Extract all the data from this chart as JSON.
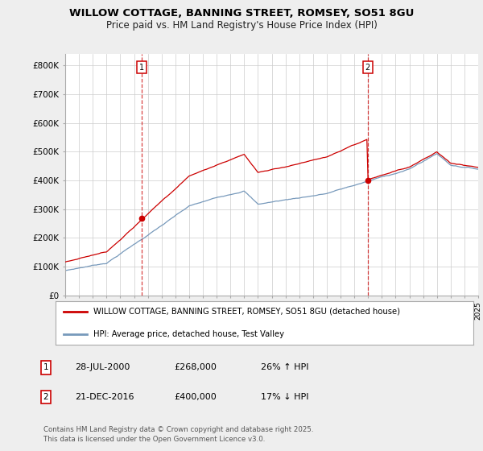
{
  "title_line1": "WILLOW COTTAGE, BANNING STREET, ROMSEY, SO51 8GU",
  "title_line2": "Price paid vs. HM Land Registry's House Price Index (HPI)",
  "background_color": "#eeeeee",
  "plot_bg_color": "#ffffff",
  "red_color": "#cc0000",
  "blue_color": "#7799bb",
  "y_min": 0,
  "y_max": 840000,
  "y_ticks": [
    0,
    100000,
    200000,
    300000,
    400000,
    500000,
    600000,
    700000,
    800000
  ],
  "y_tick_labels": [
    "£0",
    "£100K",
    "£200K",
    "£300K",
    "£400K",
    "£500K",
    "£600K",
    "£700K",
    "£800K"
  ],
  "x_start_year": 1995,
  "x_end_year": 2025,
  "sale1_year": 2000.57,
  "sale1_price": 268000,
  "sale2_year": 2016.97,
  "sale2_price": 400000,
  "sale1_date": "28-JUL-2000",
  "sale1_amount": "£268,000",
  "sale1_pct": "26% ↑ HPI",
  "sale2_date": "21-DEC-2016",
  "sale2_amount": "£400,000",
  "sale2_pct": "17% ↓ HPI",
  "legend_line1": "WILLOW COTTAGE, BANNING STREET, ROMSEY, SO51 8GU (detached house)",
  "legend_line2": "HPI: Average price, detached house, Test Valley",
  "footer": "Contains HM Land Registry data © Crown copyright and database right 2025.\nThis data is licensed under the Open Government Licence v3.0."
}
